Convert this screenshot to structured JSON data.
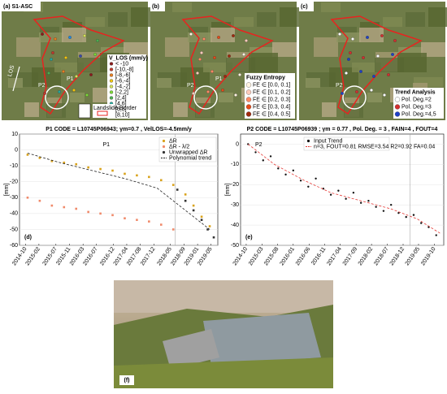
{
  "maps": [
    {
      "label": "(a) S1-ASC",
      "legend_title": "V_LOS (mm/y)",
      "legend": [
        "< -10",
        "[-10,-8]",
        "[-8,-6]",
        "[-6,-4]",
        "[-4,-2]",
        "[-2,2]",
        "[2,4]",
        "[4,6]",
        "[6,8]",
        "[8,10]"
      ],
      "legend_colors": [
        "#8b1a1a",
        "#c0392b",
        "#e67e22",
        "#f1c40f",
        "#d4e157",
        "#7cd836",
        "#4caf50",
        "#26a69a",
        "#1e88e5",
        "#3949ab"
      ],
      "points": [
        "P2",
        "P1"
      ],
      "los": "LOS",
      "border_label": "Landslide Border"
    },
    {
      "label": "(b)",
      "legend_title": "Fuzzy Entropy",
      "legend": [
        "FE ∈ [0.0, 0.1]",
        "FE ∈ [0.1, 0.2]",
        "FE ∈ [0.2, 0.3]",
        "FE ∈ [0.3, 0.4]",
        "FE ∈ [0.4, 0.5]"
      ],
      "legend_colors": [
        "#fff3e0",
        "#ffccbc",
        "#ff8a65",
        "#e64a19",
        "#a1290c"
      ],
      "points": [
        "P2",
        "P1"
      ]
    },
    {
      "label": "(c)",
      "legend_title": "Trend Analysis",
      "legend": [
        "Pol. Deg.=2",
        "Pol. Deg.=3",
        "Pol. Deg.=4,5"
      ],
      "legend_colors": [
        "#ffffff",
        "#d32f2f",
        "#1e40c8"
      ],
      "points": [
        "P2"
      ]
    }
  ],
  "chart_data": [
    {
      "type": "scatter",
      "label": "(d)",
      "annotation": "P1",
      "title": "P1 CODE = L10745P06943;  γm=0.7 , VelLOS=-4.5mm/y",
      "y_label": "[mm]",
      "xlim": [
        2014.6,
        2019.5
      ],
      "ylim": [
        -60,
        10
      ],
      "yticks": [
        10,
        0,
        -10,
        -20,
        -30,
        -40,
        -50,
        -60
      ],
      "xticks": [
        {
          "value": 2014.75,
          "label": "2014-10"
        },
        {
          "value": 2015.08,
          "label": "2015-02"
        },
        {
          "value": 2015.5,
          "label": "2015-07"
        },
        {
          "value": 2015.83,
          "label": "2015-11"
        },
        {
          "value": 2016.17,
          "label": "2016-03"
        },
        {
          "value": 2016.5,
          "label": "2016-07"
        },
        {
          "value": 2016.92,
          "label": "2016-12"
        },
        {
          "value": 2017.25,
          "label": "2017-04"
        },
        {
          "value": 2017.58,
          "label": "2017-08"
        },
        {
          "value": 2017.92,
          "label": "2017-12"
        },
        {
          "value": 2018.33,
          "label": "2018-05"
        },
        {
          "value": 2018.67,
          "label": "2018-09"
        },
        {
          "value": 2019.0,
          "label": "2019-01"
        },
        {
          "value": 2019.33,
          "label": "2019-05"
        }
      ],
      "vline": 2018.45,
      "series": [
        {
          "name": "ΔR",
          "color": "#d9a21b",
          "kind": "points",
          "x": [
            2014.8,
            2015.1,
            2015.4,
            2015.7,
            2016.0,
            2016.3,
            2016.6,
            2016.9,
            2017.2,
            2017.5,
            2017.8,
            2018.1,
            2018.4,
            2018.7,
            2018.9,
            2019.1,
            2019.3
          ],
          "values": [
            -3,
            -5,
            -7,
            -8,
            -9,
            -11,
            -12,
            -13,
            -15,
            -16,
            -17,
            -19,
            -22,
            -28,
            -35,
            -42,
            -48
          ]
        },
        {
          "name": "ΔR - λ/2",
          "color": "#f08a6a",
          "kind": "points",
          "x": [
            2014.8,
            2015.1,
            2015.4,
            2015.7,
            2016.0,
            2016.3,
            2016.6,
            2016.9,
            2017.2,
            2017.5,
            2017.8,
            2018.1,
            2018.4
          ],
          "values": [
            -30,
            -32,
            -35,
            -36,
            -37,
            -39,
            -40,
            -41,
            -43,
            -44,
            -45,
            -47,
            -50
          ]
        },
        {
          "name": "Unwrapped ΔR",
          "color": "#333333",
          "kind": "points",
          "x": [
            2018.5,
            2018.7,
            2018.9,
            2019.1,
            2019.25,
            2019.4
          ],
          "values": [
            -25,
            -32,
            -38,
            -44,
            -50,
            -55
          ]
        },
        {
          "name": "Polynomial trend",
          "color": "#222222",
          "kind": "line",
          "x": [
            2014.8,
            2015.6,
            2016.4,
            2017.2,
            2018.0,
            2018.8,
            2019.3
          ],
          "values": [
            -2,
            -8,
            -13,
            -18,
            -24,
            -40,
            -50
          ]
        }
      ]
    },
    {
      "type": "scatter",
      "label": "(e)",
      "annotation": "P2",
      "title": "P2 CODE = L10745P06939 ;  γm = 0.77 , Pol. Deg. = 3 , FAIN=4 , FOUT=4",
      "y_label": "[mm]",
      "xlim": [
        2014.6,
        2020.0
      ],
      "ylim": [
        -50,
        5
      ],
      "yticks": [
        0,
        -10,
        -20,
        -30,
        -40,
        -50
      ],
      "xticks": [
        {
          "value": 2014.75,
          "label": "2014-10"
        },
        {
          "value": 2015.17,
          "label": "2015-03"
        },
        {
          "value": 2015.58,
          "label": "2015-08"
        },
        {
          "value": 2016.0,
          "label": "2016-01"
        },
        {
          "value": 2016.42,
          "label": "2016-06"
        },
        {
          "value": 2016.83,
          "label": "2016-11"
        },
        {
          "value": 2017.25,
          "label": "2017-04"
        },
        {
          "value": 2017.67,
          "label": "2017-09"
        },
        {
          "value": 2018.08,
          "label": "2018-02"
        },
        {
          "value": 2018.5,
          "label": "2018-07"
        },
        {
          "value": 2018.92,
          "label": "2018-12"
        },
        {
          "value": 2019.33,
          "label": "2019-05"
        },
        {
          "value": 2019.75,
          "label": "2019-10"
        }
      ],
      "vline": 2019.1,
      "series": [
        {
          "name": "Input Trend",
          "color": "#111111",
          "kind": "points",
          "x": [
            2014.8,
            2015.0,
            2015.2,
            2015.4,
            2015.6,
            2015.8,
            2016.0,
            2016.2,
            2016.4,
            2016.6,
            2016.8,
            2017.0,
            2017.2,
            2017.4,
            2017.6,
            2017.8,
            2018.0,
            2018.2,
            2018.4,
            2018.6,
            2018.8,
            2019.0,
            2019.2,
            2019.4,
            2019.6,
            2019.8
          ],
          "values": [
            0,
            -4,
            -8,
            -6,
            -12,
            -15,
            -13,
            -18,
            -21,
            -17,
            -22,
            -25,
            -23,
            -27,
            -24,
            -29,
            -28,
            -31,
            -33,
            -30,
            -34,
            -36,
            -35,
            -39,
            -41,
            -45
          ]
        },
        {
          "name": "n=3, FOUT=0.81 RMSE=3.54 R2=0.92 FA=0.04",
          "color": "#e53935",
          "kind": "line",
          "x": [
            2014.8,
            2015.5,
            2016.3,
            2017.0,
            2017.8,
            2018.6,
            2019.3,
            2019.9
          ],
          "values": [
            0,
            -10,
            -18,
            -24,
            -28,
            -32,
            -37,
            -44
          ]
        }
      ]
    }
  ],
  "photo": {
    "label": "(f)"
  }
}
